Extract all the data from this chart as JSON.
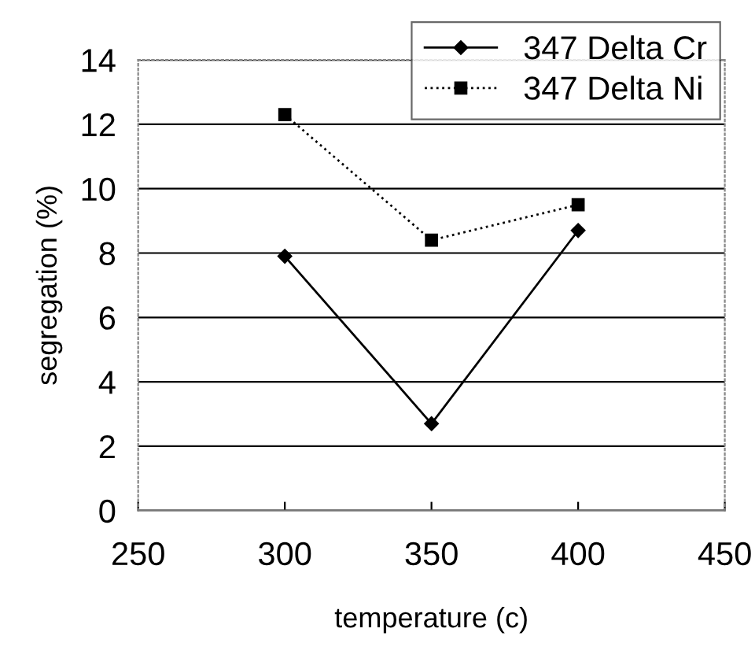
{
  "chart_data": {
    "type": "line",
    "xlabel": "temperature (c)",
    "ylabel": "segregation (%)",
    "x": [
      300,
      350,
      400
    ],
    "series": [
      {
        "name": "347 Delta Cr",
        "color": "#000000",
        "values": [
          7.9,
          2.7,
          8.7
        ],
        "marker": "diamond",
        "line_style": "solid"
      },
      {
        "name": "347 Delta Ni",
        "color": "#000000",
        "values": [
          12.3,
          8.4,
          9.5
        ],
        "marker": "square",
        "line_style": "dotted"
      }
    ],
    "xlim": [
      250,
      450
    ],
    "xticks": [
      250,
      300,
      350,
      400,
      450
    ],
    "ylim": [
      0,
      14
    ],
    "yticks": [
      0,
      2,
      4,
      6,
      8,
      10,
      12,
      14
    ],
    "grid": "y",
    "legend": "top right"
  }
}
